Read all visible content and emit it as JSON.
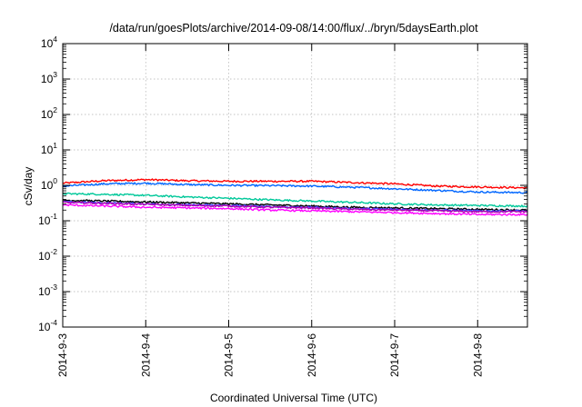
{
  "chart_data": {
    "type": "line",
    "title": "/data/run/goesPlots/archive/2014-09-08/14:00/flux/../bryn/5daysEarth.plot",
    "xlabel": "Coordinated Universal Time (UTC)",
    "ylabel": "cSv/day",
    "y_scale": "log",
    "ylim": [
      0.0001,
      10000
    ],
    "xlim": [
      0,
      5.6
    ],
    "x_ticks": [
      {
        "value": 0,
        "label": "2014-9-3"
      },
      {
        "value": 1,
        "label": "2014-9-4"
      },
      {
        "value": 2,
        "label": "2014-9-5"
      },
      {
        "value": 3,
        "label": "2014-9-6"
      },
      {
        "value": 4,
        "label": "2014-9-7"
      },
      {
        "value": 5,
        "label": "2014-9-8"
      }
    ],
    "y_ticks": [
      {
        "value": 0.0001,
        "base": "10",
        "exp": "-4"
      },
      {
        "value": 0.001,
        "base": "10",
        "exp": "-3"
      },
      {
        "value": 0.01,
        "base": "10",
        "exp": "-2"
      },
      {
        "value": 0.1,
        "base": "10",
        "exp": "-1"
      },
      {
        "value": 1,
        "base": "10",
        "exp": "0"
      },
      {
        "value": 10,
        "base": "10",
        "exp": "1"
      },
      {
        "value": 100,
        "base": "10",
        "exp": "2"
      },
      {
        "value": 1000,
        "base": "10",
        "exp": "3"
      },
      {
        "value": 10000,
        "base": "10",
        "exp": "4"
      }
    ],
    "grid": true,
    "series": [
      {
        "color": "#ff0000",
        "x": [
          0,
          0.5,
          1.0,
          1.5,
          2.0,
          2.5,
          3.0,
          3.5,
          4.0,
          4.5,
          5.0,
          5.6
        ],
        "y": [
          1.15,
          1.35,
          1.45,
          1.35,
          1.3,
          1.3,
          1.3,
          1.2,
          1.1,
          0.95,
          0.9,
          0.85
        ]
      },
      {
        "color": "#0066ff",
        "x": [
          0,
          0.5,
          1.0,
          1.5,
          2.0,
          2.5,
          3.0,
          3.5,
          4.0,
          4.5,
          5.0,
          5.6
        ],
        "y": [
          0.95,
          1.1,
          1.15,
          1.05,
          1.0,
          0.98,
          0.95,
          0.88,
          0.8,
          0.72,
          0.65,
          0.62
        ]
      },
      {
        "color": "#00c89a",
        "x": [
          0,
          0.5,
          1.0,
          1.5,
          2.0,
          2.5,
          3.0,
          3.5,
          4.0,
          4.5,
          5.0,
          5.6
        ],
        "y": [
          0.58,
          0.56,
          0.52,
          0.47,
          0.43,
          0.39,
          0.36,
          0.33,
          0.3,
          0.28,
          0.27,
          0.26
        ]
      },
      {
        "color": "#000000",
        "x": [
          0,
          0.5,
          1.0,
          1.5,
          2.0,
          2.5,
          3.0,
          3.5,
          4.0,
          4.5,
          5.0,
          5.6
        ],
        "y": [
          0.38,
          0.36,
          0.34,
          0.32,
          0.3,
          0.28,
          0.26,
          0.24,
          0.23,
          0.22,
          0.21,
          0.2
        ]
      },
      {
        "color": "#4444ff",
        "x": [
          0,
          0.5,
          1.0,
          1.5,
          2.0,
          2.5,
          3.0,
          3.5,
          4.0,
          4.5,
          5.0,
          5.6
        ],
        "y": [
          0.34,
          0.32,
          0.3,
          0.28,
          0.27,
          0.25,
          0.24,
          0.22,
          0.21,
          0.2,
          0.19,
          0.19
        ]
      },
      {
        "color": "#b000b0",
        "x": [
          0,
          0.5,
          1.0,
          1.5,
          2.0,
          2.5,
          3.0,
          3.5,
          4.0,
          4.5,
          5.0,
          5.6
        ],
        "y": [
          0.33,
          0.31,
          0.29,
          0.27,
          0.26,
          0.24,
          0.23,
          0.21,
          0.2,
          0.19,
          0.18,
          0.18
        ]
      },
      {
        "color": "#ff00ff",
        "x": [
          0,
          0.5,
          1.0,
          1.5,
          2.0,
          2.5,
          3.0,
          3.5,
          4.0,
          4.5,
          5.0,
          5.6
        ],
        "y": [
          0.28,
          0.26,
          0.24,
          0.23,
          0.22,
          0.2,
          0.19,
          0.18,
          0.17,
          0.16,
          0.15,
          0.15
        ]
      }
    ]
  }
}
